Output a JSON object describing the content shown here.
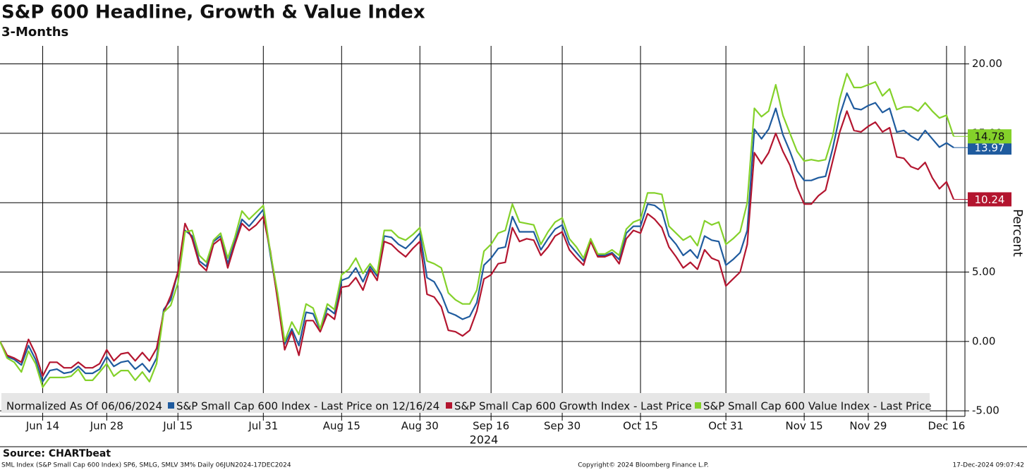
{
  "chart_data": {
    "type": "line",
    "title": "S&P 600 Headline, Growth & Value Index",
    "subtitle": "3-Months",
    "xlabel": "2024",
    "ylabel": "Percent",
    "legend_title": "Normalized As Of 06/06/2024",
    "source": "Source: CHARTbeat",
    "footer_left": "SML Index (S&P Small Cap 600 Index) SP6, SMLG, SMLV 3M%  Daily 06JUN2024-17DEC2024",
    "footer_center": "Copyright© 2024 Bloomberg Finance L.P.",
    "footer_right": "17-Dec-2024 09:07:42",
    "legend": "bottom",
    "grid": true,
    "categories": [
      "2024-06-06",
      "2024-06-07",
      "2024-06-10",
      "2024-06-11",
      "2024-06-12",
      "2024-06-13",
      "2024-06-14",
      "2024-06-17",
      "2024-06-18",
      "2024-06-20",
      "2024-06-21",
      "2024-06-24",
      "2024-06-25",
      "2024-06-26",
      "2024-06-27",
      "2024-06-28",
      "2024-07-01",
      "2024-07-02",
      "2024-07-03",
      "2024-07-05",
      "2024-07-08",
      "2024-07-09",
      "2024-07-10",
      "2024-07-11",
      "2024-07-12",
      "2024-07-15",
      "2024-07-16",
      "2024-07-17",
      "2024-07-18",
      "2024-07-19",
      "2024-07-22",
      "2024-07-23",
      "2024-07-24",
      "2024-07-25",
      "2024-07-26",
      "2024-07-29",
      "2024-07-30",
      "2024-07-31",
      "2024-08-01",
      "2024-08-02",
      "2024-08-05",
      "2024-08-06",
      "2024-08-07",
      "2024-08-08",
      "2024-08-09",
      "2024-08-12",
      "2024-08-13",
      "2024-08-14",
      "2024-08-15",
      "2024-08-16",
      "2024-08-19",
      "2024-08-20",
      "2024-08-21",
      "2024-08-22",
      "2024-08-23",
      "2024-08-26",
      "2024-08-27",
      "2024-08-28",
      "2024-08-29",
      "2024-08-30",
      "2024-09-03",
      "2024-09-04",
      "2024-09-05",
      "2024-09-06",
      "2024-09-09",
      "2024-09-10",
      "2024-09-11",
      "2024-09-12",
      "2024-09-13",
      "2024-09-16",
      "2024-09-17",
      "2024-09-18",
      "2024-09-19",
      "2024-09-20",
      "2024-09-23",
      "2024-09-24",
      "2024-09-25",
      "2024-09-26",
      "2024-09-27",
      "2024-09-30",
      "2024-10-01",
      "2024-10-02",
      "2024-10-03",
      "2024-10-04",
      "2024-10-07",
      "2024-10-08",
      "2024-10-09",
      "2024-10-10",
      "2024-10-11",
      "2024-10-14",
      "2024-10-15",
      "2024-10-16",
      "2024-10-17",
      "2024-10-18",
      "2024-10-21",
      "2024-10-22",
      "2024-10-23",
      "2024-10-24",
      "2024-10-25",
      "2024-10-28",
      "2024-10-29",
      "2024-10-30",
      "2024-10-31",
      "2024-11-01",
      "2024-11-04",
      "2024-11-05",
      "2024-11-06",
      "2024-11-07",
      "2024-11-08",
      "2024-11-11",
      "2024-11-12",
      "2024-11-13",
      "2024-11-14",
      "2024-11-15",
      "2024-11-18",
      "2024-11-19",
      "2024-11-20",
      "2024-11-21",
      "2024-11-22",
      "2024-11-25",
      "2024-11-26",
      "2024-11-27",
      "2024-11-29",
      "2024-12-02",
      "2024-12-03",
      "2024-12-04",
      "2024-12-05",
      "2024-12-06",
      "2024-12-09",
      "2024-12-10",
      "2024-12-11",
      "2024-12-12",
      "2024-12-13",
      "2024-12-16",
      "2024-12-17"
    ],
    "xticks": [
      {
        "value": "2024-06-14",
        "label": "Jun 14"
      },
      {
        "value": "2024-06-28",
        "label": "Jun 28"
      },
      {
        "value": "2024-07-15",
        "label": "Jul 15"
      },
      {
        "value": "2024-07-31",
        "label": "Jul 31"
      },
      {
        "value": "2024-08-15",
        "label": "Aug 15"
      },
      {
        "value": "2024-08-30",
        "label": "Aug 30"
      },
      {
        "value": "2024-09-16",
        "label": "Sep 16"
      },
      {
        "value": "2024-09-30",
        "label": "Sep 30"
      },
      {
        "value": "2024-10-15",
        "label": "Oct 15"
      },
      {
        "value": "2024-10-31",
        "label": "Oct 31"
      },
      {
        "value": "2024-11-15",
        "label": "Nov 15"
      },
      {
        "value": "2024-11-29",
        "label": "Nov 29"
      },
      {
        "value": "2024-12-16",
        "label": "Dec 16"
      }
    ],
    "ylim": [
      -5.4,
      21.3
    ],
    "yticks": [
      {
        "value": 20,
        "label": "20.00"
      },
      {
        "value": 15,
        "label": "15.00"
      },
      {
        "value": 10,
        "label": "10.00"
      },
      {
        "value": 5,
        "label": "5.00"
      },
      {
        "value": 0,
        "label": "0.00"
      },
      {
        "value": -5,
        "label": "-5.00"
      }
    ],
    "series": [
      {
        "name": "S&P Small Cap 600 Index - Last Price on 12/16/24",
        "color": "#1f5b9e",
        "values": [
          0,
          -1.1,
          -1.3,
          -1.7,
          -0.3,
          -1.3,
          -2.9,
          -2.1,
          -2.0,
          -2.3,
          -2.2,
          -1.8,
          -2.3,
          -2.3,
          -2.0,
          -1.1,
          -1.8,
          -1.5,
          -1.4,
          -2.0,
          -1.6,
          -2.2,
          -1.2,
          2.3,
          3.0,
          5.0,
          8.0,
          7.6,
          5.8,
          5.4,
          7.2,
          7.6,
          5.6,
          7.2,
          8.8,
          8.3,
          8.9,
          9.5,
          6.2,
          3.2,
          -0.2,
          0.9,
          -0.3,
          2.1,
          2.0,
          0.8,
          2.4,
          2.0,
          4.4,
          4.6,
          5.3,
          4.3,
          5.4,
          4.7,
          7.6,
          7.5,
          7.0,
          6.7,
          7.2,
          7.8,
          4.6,
          4.3,
          3.4,
          2.1,
          1.9,
          1.6,
          1.8,
          2.8,
          5.5,
          6.0,
          6.7,
          6.8,
          9.0,
          7.9,
          7.9,
          7.9,
          6.6,
          7.4,
          8.1,
          8.4,
          7.0,
          6.4,
          5.8,
          7.3,
          6.2,
          6.2,
          6.4,
          5.9,
          7.8,
          8.3,
          8.3,
          9.9,
          9.8,
          9.4,
          7.6,
          7.0,
          6.2,
          6.6,
          6.0,
          7.6,
          7.3,
          7.2,
          5.5,
          5.9,
          6.4,
          8.0,
          15.3,
          14.6,
          15.3,
          16.8,
          14.9,
          13.7,
          12.3,
          11.6,
          11.6,
          11.8,
          11.9,
          13.9,
          16.3,
          17.9,
          16.8,
          16.7,
          17.0,
          17.2,
          16.5,
          16.8,
          15.1,
          15.2,
          14.8,
          14.5,
          15.2,
          14.6,
          14.0,
          14.3,
          13.97
        ]
      },
      {
        "name": "S&P Small Cap 600 Growth Index - Last Price",
        "color": "#b3152f",
        "values": [
          0,
          -1.0,
          -1.2,
          -1.5,
          0.15,
          -0.9,
          -2.5,
          -1.5,
          -1.5,
          -1.9,
          -1.9,
          -1.5,
          -1.9,
          -1.9,
          -1.6,
          -0.6,
          -1.4,
          -0.9,
          -0.8,
          -1.4,
          -0.8,
          -1.4,
          -0.5,
          2.1,
          3.3,
          5.0,
          8.5,
          7.4,
          5.6,
          5.1,
          7.0,
          7.4,
          5.3,
          7.0,
          8.5,
          8.0,
          8.4,
          9.0,
          6.5,
          3.0,
          -0.6,
          0.7,
          -1.0,
          1.5,
          1.5,
          0.7,
          2.0,
          1.6,
          3.9,
          4.0,
          4.6,
          3.7,
          5.2,
          4.4,
          7.2,
          7.0,
          6.5,
          6.1,
          6.7,
          7.2,
          3.4,
          3.2,
          2.5,
          0.8,
          0.7,
          0.4,
          0.8,
          2.2,
          4.5,
          4.8,
          5.6,
          5.7,
          8.2,
          7.2,
          7.4,
          7.3,
          6.2,
          6.8,
          7.6,
          7.9,
          6.6,
          6.0,
          5.5,
          7.2,
          6.1,
          6.1,
          6.3,
          5.6,
          7.4,
          8.0,
          7.8,
          9.2,
          8.8,
          8.2,
          6.8,
          6.1,
          5.3,
          5.7,
          5.2,
          6.6,
          6.0,
          5.8,
          4.0,
          4.5,
          5.0,
          7.0,
          13.6,
          12.8,
          13.6,
          15.0,
          13.7,
          12.7,
          11.1,
          9.9,
          9.9,
          10.5,
          10.9,
          13.0,
          15.1,
          16.6,
          15.2,
          15.1,
          15.5,
          15.8,
          15.1,
          15.4,
          13.3,
          13.2,
          12.6,
          12.4,
          12.9,
          11.8,
          11.0,
          11.5,
          10.24
        ]
      },
      {
        "name": "S&P Small Cap 600 Value Index - Last Price",
        "color": "#84d12a",
        "values": [
          0,
          -1.2,
          -1.5,
          -2.2,
          -0.7,
          -1.6,
          -3.3,
          -2.6,
          -2.6,
          -2.6,
          -2.5,
          -2.0,
          -2.8,
          -2.8,
          -2.2,
          -1.6,
          -2.5,
          -2.1,
          -2.1,
          -2.8,
          -2.2,
          -2.9,
          -1.6,
          2.1,
          2.6,
          4.2,
          7.9,
          8.0,
          6.2,
          5.7,
          7.3,
          7.8,
          6.0,
          7.5,
          9.4,
          8.8,
          9.3,
          9.8,
          6.4,
          3.5,
          0.0,
          1.4,
          0.5,
          2.7,
          2.4,
          0.9,
          2.7,
          2.3,
          4.8,
          5.2,
          6.0,
          4.9,
          5.6,
          4.9,
          8.0,
          8.0,
          7.5,
          7.3,
          7.7,
          8.2,
          5.8,
          5.6,
          5.3,
          3.5,
          3.0,
          2.7,
          2.7,
          3.7,
          6.5,
          7.0,
          7.8,
          8.0,
          9.9,
          8.6,
          8.5,
          8.4,
          7.0,
          7.9,
          8.6,
          8.9,
          7.4,
          6.8,
          6.0,
          7.4,
          6.3,
          6.3,
          6.6,
          6.2,
          8.1,
          8.6,
          8.8,
          10.7,
          10.7,
          10.6,
          8.3,
          7.8,
          7.3,
          7.6,
          6.9,
          8.7,
          8.4,
          8.6,
          7.0,
          7.4,
          7.9,
          10.0,
          16.8,
          16.2,
          16.6,
          18.5,
          16.3,
          15.0,
          13.7,
          13.0,
          13.1,
          13.0,
          13.1,
          14.8,
          17.5,
          19.3,
          18.3,
          18.3,
          18.5,
          18.7,
          17.7,
          18.2,
          16.7,
          16.9,
          16.9,
          16.6,
          17.2,
          16.6,
          16.1,
          16.3,
          14.78
        ]
      }
    ]
  }
}
